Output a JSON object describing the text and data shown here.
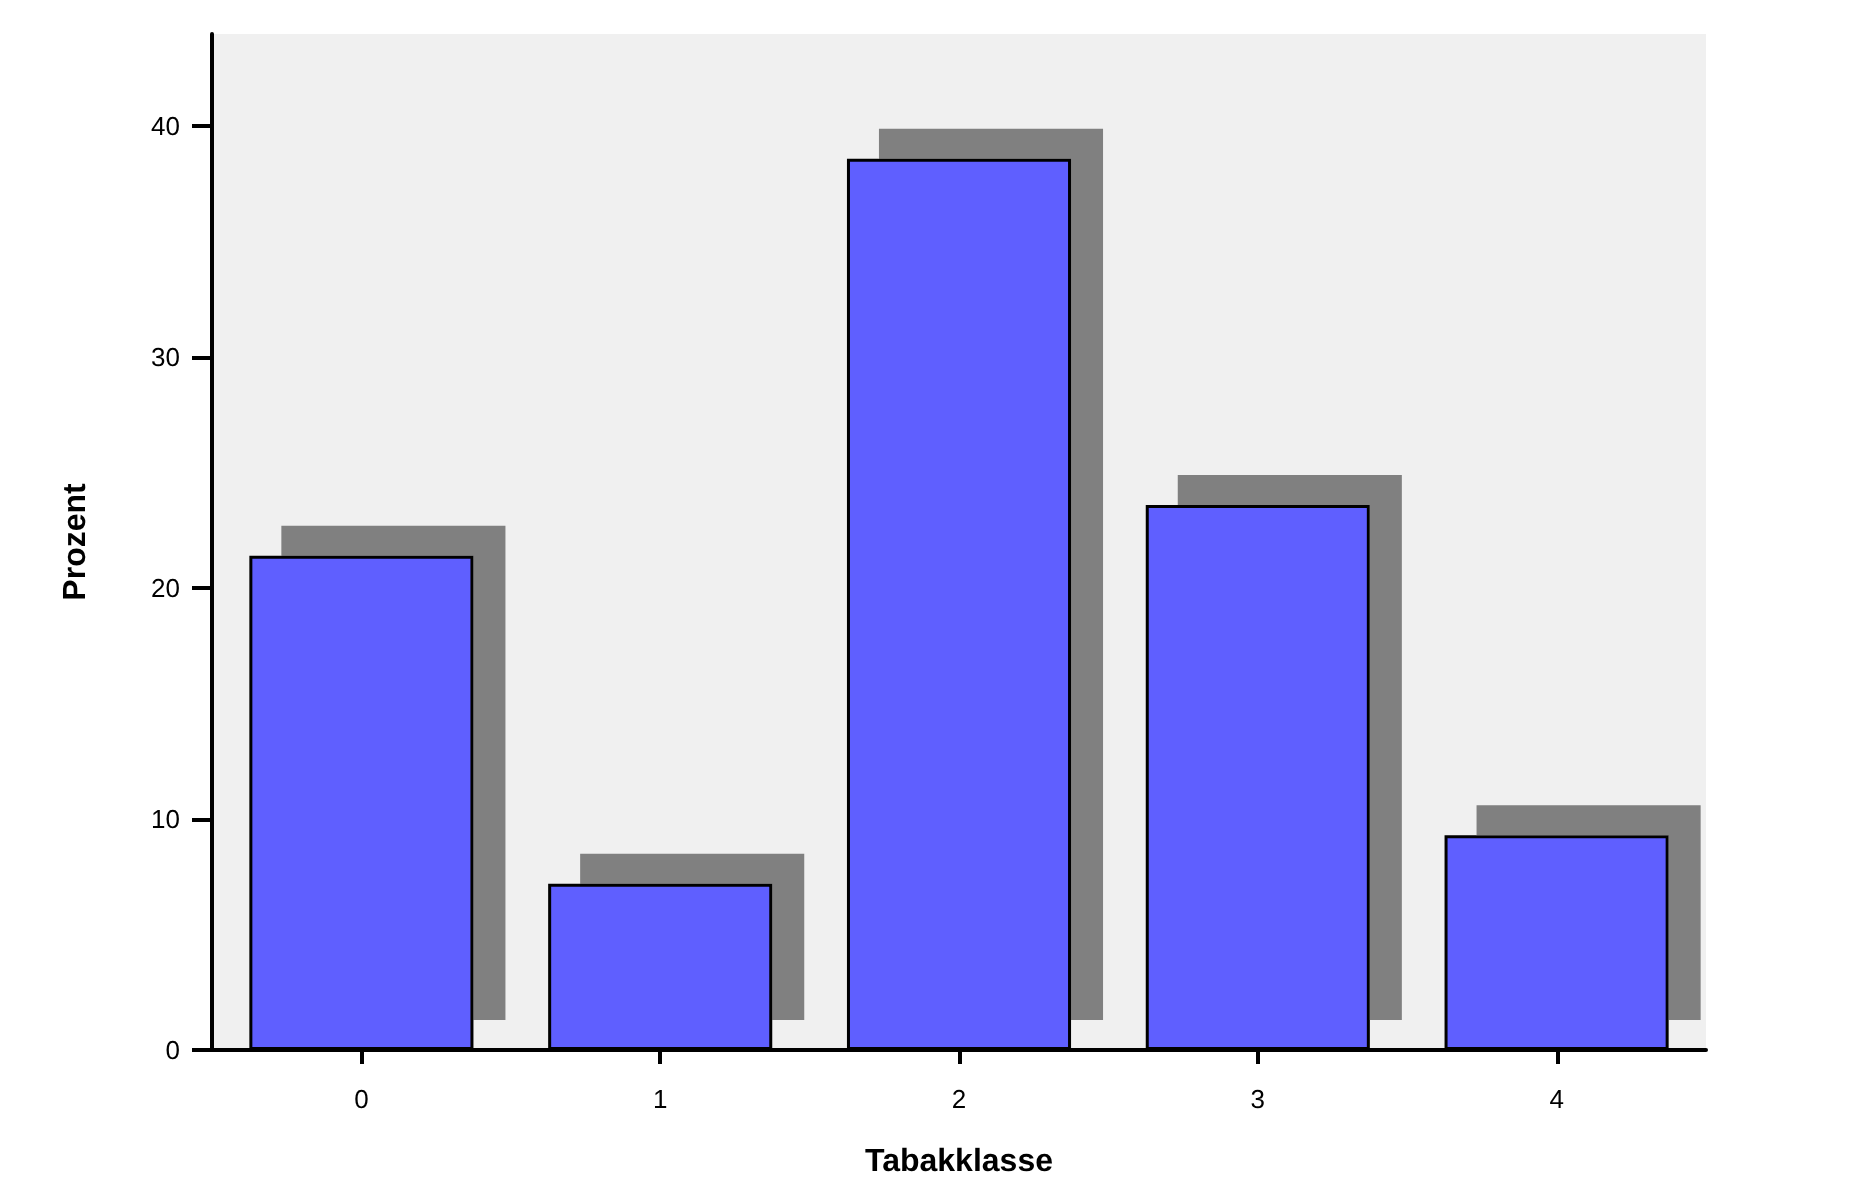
{
  "chart_data": {
    "type": "bar",
    "xlabel": "Tabakklasse",
    "ylabel": "Prozent",
    "categories": [
      "0",
      "1",
      "2",
      "3",
      "4"
    ],
    "values": [
      21.4,
      7.2,
      38.6,
      23.6,
      9.3
    ],
    "color": "#5f5fff",
    "ylim": [
      0,
      44
    ],
    "yticks": [
      0,
      10,
      20,
      30,
      40
    ]
  }
}
